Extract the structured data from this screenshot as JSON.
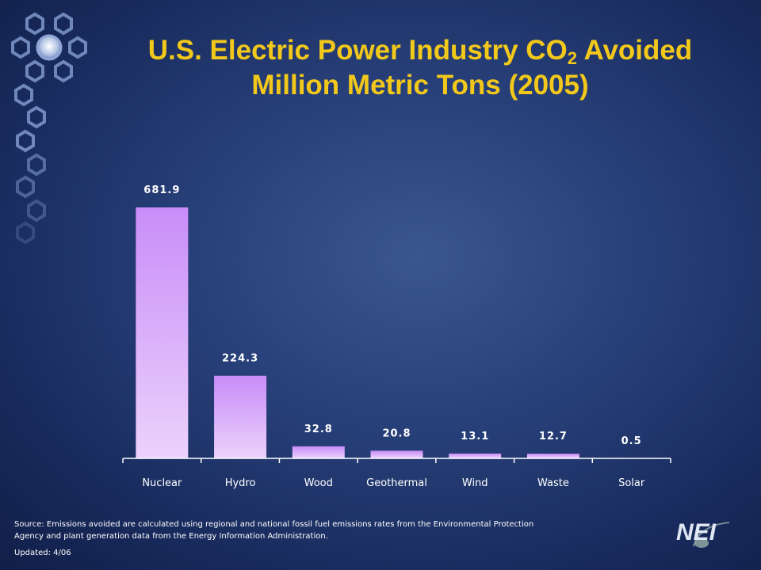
{
  "slide": {
    "title_line1_prefix": "U.S. Electric Power Industry CO",
    "title_subscript": "2",
    "title_line1_suffix": " Avoided",
    "title_line2": "Million Metric Tons (2005)"
  },
  "footer": {
    "source": "Source: Emissions avoided are calculated using regional and national fossil fuel emissions rates from the Environmental Protection Agency and plant generation data from the Energy Information Administration.",
    "updated": "Updated: 4/06"
  },
  "logo": {
    "text": "NEI",
    "icon": "nei-logo-icon"
  },
  "colors": {
    "title": "#f2c81a",
    "bar_top": "#c88cf8",
    "bar_bottom": "#ecd2fb",
    "axis": "#ffffff",
    "labels": "#ffffff"
  },
  "chart_data": {
    "type": "bar",
    "title": "U.S. Electric Power Industry CO2 Avoided Million Metric Tons (2005)",
    "categories": [
      "Nuclear",
      "Hydro",
      "Wood",
      "Geothermal",
      "Wind",
      "Waste",
      "Solar"
    ],
    "values": [
      681.9,
      224.3,
      32.8,
      20.8,
      13.1,
      12.7,
      0.5
    ],
    "data_labels": [
      "681.9",
      "224.3",
      "32.8",
      "20.8",
      "13.1",
      "12.7",
      "0.5"
    ],
    "xlabel": "",
    "ylabel": "",
    "ylim": [
      0,
      681.9
    ],
    "grid": false,
    "legend": "none"
  }
}
